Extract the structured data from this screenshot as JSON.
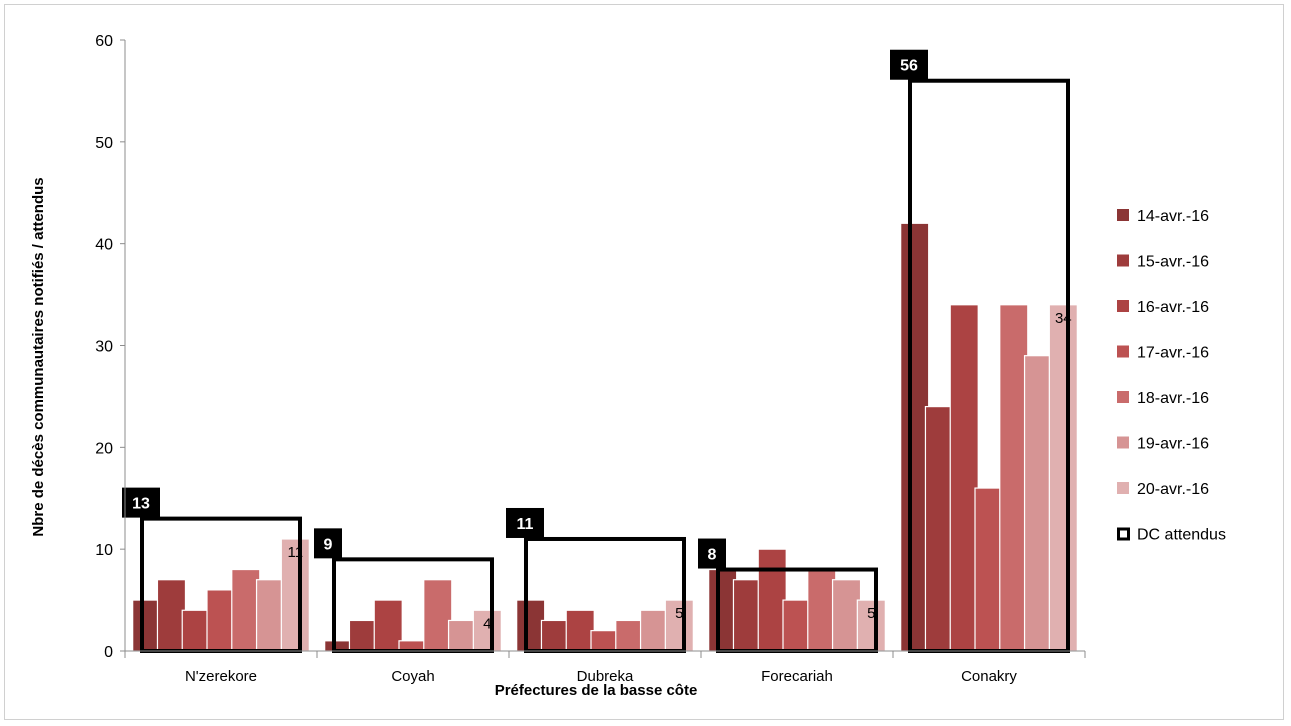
{
  "chart_data": {
    "type": "bar",
    "title": "",
    "xlabel": "Préfectures de la basse côte",
    "ylabel": "Nbre de décès communautaires notifiés / attendus",
    "ylim": [
      0,
      60
    ],
    "yticks": [
      0,
      10,
      20,
      30,
      40,
      50,
      60
    ],
    "grid": false,
    "legend_position": "right",
    "categories": [
      "N'zerekore",
      "Coyah",
      "Dubreka",
      "Forecariah",
      "Conakry"
    ],
    "series": [
      {
        "name": "14-avr.-16",
        "color": "#8b3535",
        "values": [
          5,
          1,
          5,
          8,
          42
        ]
      },
      {
        "name": "15-avr.-16",
        "color": "#9e3c3c",
        "values": [
          7,
          3,
          3,
          7,
          24
        ]
      },
      {
        "name": "16-avr.-16",
        "color": "#ac4343",
        "values": [
          4,
          5,
          4,
          10,
          34
        ]
      },
      {
        "name": "17-avr.-16",
        "color": "#bc5252",
        "values": [
          6,
          1,
          2,
          5,
          16
        ]
      },
      {
        "name": "18-avr.-16",
        "color": "#c96b6b",
        "values": [
          8,
          7,
          3,
          8,
          34
        ]
      },
      {
        "name": "19-avr.-16",
        "color": "#d69494",
        "values": [
          7,
          3,
          4,
          7,
          29
        ]
      },
      {
        "name": "20-avr.-16",
        "color": "#e0b0b0",
        "values": [
          11,
          4,
          5,
          5,
          34
        ]
      }
    ],
    "expected": {
      "name": "DC attendus",
      "values": [
        13,
        9,
        11,
        8,
        56
      ]
    }
  }
}
